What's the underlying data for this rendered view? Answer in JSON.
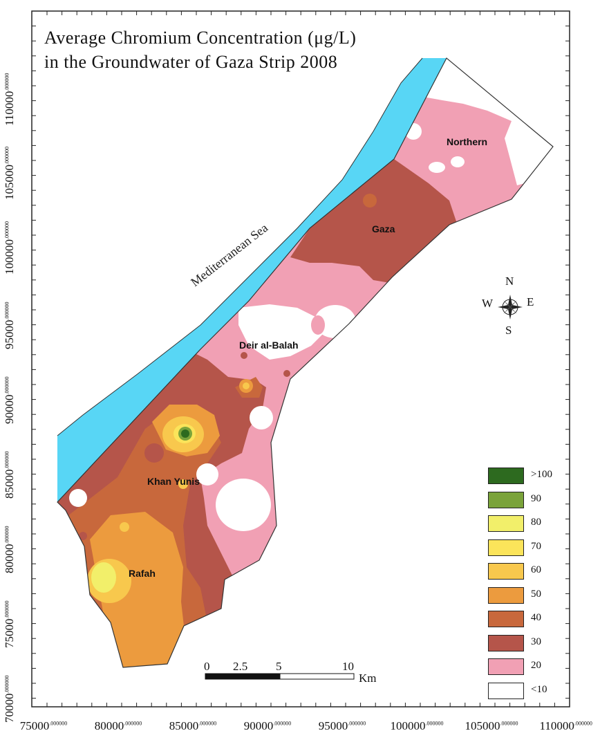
{
  "title": {
    "line1": "Average Chromium Concentration (μg/L)",
    "line2": "in the Groundwater of Gaza Strip 2008"
  },
  "axes": {
    "y_ticks": [
      {
        "main": "110000",
        "sup": ".000000"
      },
      {
        "main": "105000",
        "sup": ".000000"
      },
      {
        "main": "100000",
        "sup": ".000000"
      },
      {
        "main": "95000",
        "sup": ".000000"
      },
      {
        "main": "90000",
        "sup": ".000000"
      },
      {
        "main": "85000",
        "sup": ".000000"
      },
      {
        "main": "80000",
        "sup": ".000000"
      },
      {
        "main": "75000",
        "sup": ".000000"
      },
      {
        "main": "70000",
        "sup": ".000000"
      }
    ],
    "x_ticks": [
      {
        "main": "75000",
        "sup": ".000000"
      },
      {
        "main": "80000",
        "sup": ".000000"
      },
      {
        "main": "85000",
        "sup": ".000000"
      },
      {
        "main": "90000",
        "sup": ".000000"
      },
      {
        "main": "95000",
        "sup": ".000000"
      },
      {
        "main": "100000",
        "sup": ".000000"
      },
      {
        "main": "105000",
        "sup": ".000000"
      },
      {
        "main": "110000",
        "sup": ".000000"
      }
    ]
  },
  "places": {
    "northern": "Northern",
    "gaza": "Gaza",
    "deir": "Deir al-Balah",
    "khan": "Khan Yunis",
    "rafah": "Rafah",
    "sea": "Mediterranean Sea"
  },
  "compass": {
    "n": "N",
    "s": "S",
    "e": "E",
    "w": "W",
    "icon": "compass-rose-icon"
  },
  "scale_bar": {
    "labels": [
      "0",
      "2.5",
      "5",
      "10"
    ],
    "unit": "Km"
  },
  "legend": [
    {
      "label": ">100",
      "color": "#2d6a1f"
    },
    {
      "label": "90",
      "color": "#7aa33a"
    },
    {
      "label": "80",
      "color": "#f2ef6a"
    },
    {
      "label": "70",
      "color": "#fbe45a"
    },
    {
      "label": "60",
      "color": "#f8c84d"
    },
    {
      "label": "50",
      "color": "#ec9b3e"
    },
    {
      "label": "40",
      "color": "#c8683c"
    },
    {
      "label": "30",
      "color": "#b5554a"
    },
    {
      "label": "20",
      "color": "#f1a0b4"
    },
    {
      "label": "<10",
      "color": "#ffffff"
    }
  ],
  "colors": {
    "sea": "#58d6f5",
    "c100": "#2d6a1f",
    "c90": "#7aa33a",
    "c80": "#f2ef6a",
    "c70": "#fbe45a",
    "c60": "#f8c84d",
    "c50": "#ec9b3e",
    "c40": "#c8683c",
    "c30": "#b5554a",
    "c20": "#f1a0b4",
    "c10": "#ffffff"
  }
}
